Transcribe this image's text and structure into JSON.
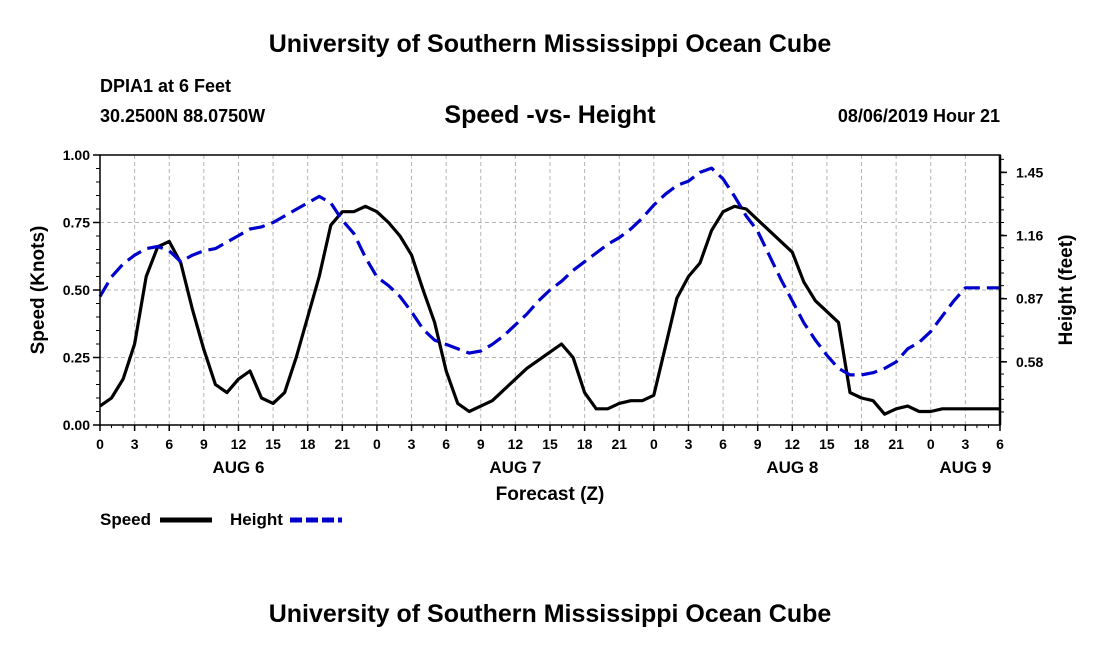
{
  "header": {
    "title": "University of Southern Mississippi Ocean Cube",
    "station": "DPIA1 at 6 Feet",
    "coords": "30.2500N 88.0750W",
    "run_time": "08/06/2019 Hour 21",
    "footer_title": "University of Southern Mississippi Ocean Cube"
  },
  "chart_data": {
    "type": "line",
    "title": "Speed -vs- Height",
    "xlabel": "Forecast (Z)",
    "ylabel": "Speed (Knots)",
    "ylabel_right": "Height (feet)",
    "x_unit": "hours since AUG 6 00Z",
    "xlim": [
      0,
      78
    ],
    "ylim": [
      0,
      1
    ],
    "ylim_right": [
      0.29,
      1.53
    ],
    "grid": true,
    "legend_position": "bottom-left",
    "x_ticks": [
      0,
      3,
      6,
      9,
      12,
      15,
      18,
      21,
      24,
      27,
      30,
      33,
      36,
      39,
      42,
      45,
      48,
      51,
      54,
      57,
      60,
      63,
      66,
      69,
      72,
      75,
      78
    ],
    "x_tick_labels": [
      "0",
      "3",
      "6",
      "9",
      "12",
      "15",
      "18",
      "21",
      "0",
      "3",
      "6",
      "9",
      "12",
      "15",
      "18",
      "21",
      "0",
      "3",
      "6",
      "9",
      "12",
      "15",
      "18",
      "21",
      "0",
      "3",
      "6"
    ],
    "y_ticks": [
      0,
      0.25,
      0.5,
      0.75,
      1.0
    ],
    "y_tick_labels": [
      "0.00",
      "0.25",
      "0.50",
      "0.75",
      "1.00"
    ],
    "y_right_ticks": [
      0.58,
      0.87,
      1.16,
      1.45
    ],
    "y_right_tick_labels": [
      "0.58",
      "0.87",
      "1.16",
      "1.45"
    ],
    "date_labels": [
      {
        "label": "AUG 6",
        "x": 12
      },
      {
        "label": "AUG 7",
        "x": 36
      },
      {
        "label": "AUG 8",
        "x": 60
      },
      {
        "label": "AUG 9",
        "x": 75
      }
    ],
    "series": [
      {
        "name": "Speed",
        "axis": "left",
        "color": "#000000",
        "dash": "solid",
        "x": [
          0,
          1,
          2,
          3,
          4,
          5,
          6,
          7,
          8,
          9,
          10,
          11,
          12,
          13,
          14,
          15,
          16,
          17,
          18,
          19,
          20,
          21,
          22,
          23,
          24,
          25,
          26,
          27,
          28,
          29,
          30,
          31,
          32,
          33,
          34,
          35,
          36,
          37,
          38,
          39,
          40,
          41,
          42,
          43,
          44,
          45,
          46,
          47,
          48,
          49,
          50,
          51,
          52,
          53,
          54,
          55,
          56,
          57,
          58,
          59,
          60,
          61,
          62,
          63,
          64,
          65,
          66,
          67,
          68,
          69,
          70,
          71,
          72,
          73,
          74,
          75,
          76,
          77,
          78
        ],
        "values": [
          0.07,
          0.1,
          0.17,
          0.3,
          0.55,
          0.66,
          0.68,
          0.6,
          0.43,
          0.28,
          0.15,
          0.12,
          0.17,
          0.2,
          0.1,
          0.08,
          0.12,
          0.25,
          0.4,
          0.55,
          0.74,
          0.79,
          0.79,
          0.81,
          0.79,
          0.75,
          0.7,
          0.63,
          0.5,
          0.38,
          0.2,
          0.08,
          0.05,
          0.07,
          0.09,
          0.13,
          0.17,
          0.21,
          0.24,
          0.27,
          0.3,
          0.25,
          0.12,
          0.06,
          0.06,
          0.08,
          0.09,
          0.09,
          0.11,
          0.29,
          0.47,
          0.55,
          0.6,
          0.72,
          0.79,
          0.81,
          0.8,
          0.76,
          0.72,
          0.68,
          0.64,
          0.53,
          0.46,
          0.42,
          0.38,
          0.12,
          0.1,
          0.09,
          0.04,
          0.06,
          0.07,
          0.05,
          0.05,
          0.06,
          0.06,
          0.06,
          0.06,
          0.06,
          0.06
        ]
      },
      {
        "name": "Height",
        "axis": "right",
        "color": "#0000cc",
        "dash": "dashed",
        "x": [
          0,
          1,
          2,
          3,
          4,
          5,
          6,
          7,
          8,
          9,
          10,
          11,
          12,
          13,
          14,
          15,
          16,
          17,
          18,
          19,
          20,
          21,
          22,
          23,
          24,
          25,
          26,
          27,
          28,
          29,
          30,
          31,
          32,
          33,
          34,
          35,
          36,
          37,
          38,
          39,
          40,
          41,
          42,
          43,
          44,
          45,
          46,
          47,
          48,
          49,
          50,
          51,
          52,
          53,
          54,
          55,
          56,
          57,
          58,
          59,
          60,
          61,
          62,
          63,
          64,
          65,
          66,
          67,
          68,
          69,
          70,
          71,
          72,
          73,
          74,
          75,
          76,
          77,
          78
        ],
        "values": [
          0.88,
          0.97,
          1.03,
          1.07,
          1.1,
          1.11,
          1.09,
          1.04,
          1.07,
          1.09,
          1.1,
          1.13,
          1.16,
          1.19,
          1.2,
          1.22,
          1.25,
          1.28,
          1.31,
          1.34,
          1.31,
          1.23,
          1.17,
          1.06,
          0.97,
          0.93,
          0.88,
          0.81,
          0.73,
          0.68,
          0.66,
          0.64,
          0.62,
          0.63,
          0.66,
          0.7,
          0.75,
          0.8,
          0.86,
          0.91,
          0.95,
          1.0,
          1.04,
          1.08,
          1.12,
          1.15,
          1.19,
          1.24,
          1.3,
          1.35,
          1.39,
          1.41,
          1.45,
          1.47,
          1.42,
          1.34,
          1.25,
          1.18,
          1.07,
          0.96,
          0.86,
          0.76,
          0.68,
          0.61,
          0.55,
          0.52,
          0.52,
          0.53,
          0.55,
          0.58,
          0.64,
          0.67,
          0.72,
          0.79,
          0.86,
          0.92,
          0.92,
          0.92,
          0.92
        ]
      }
    ],
    "legend": [
      {
        "name": "Speed",
        "color": "#000000",
        "dash": "solid"
      },
      {
        "name": "Height",
        "color": "#0000cc",
        "dash": "dashed"
      }
    ]
  }
}
